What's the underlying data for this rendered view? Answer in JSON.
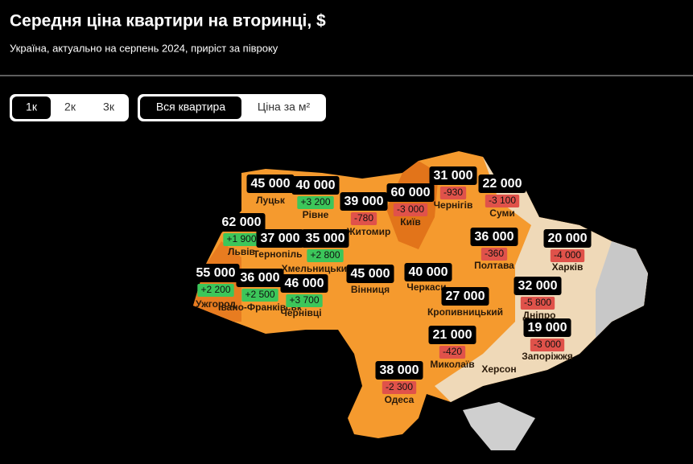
{
  "header": {
    "title": "Середня ціна квартири на вторинці, $",
    "subtitle": "Україна, актуально на серпень 2024, приріст за півроку"
  },
  "controls": {
    "rooms": [
      "1к",
      "2к",
      "3к"
    ],
    "modes": [
      "Вся квартира",
      "Ціна за м²"
    ]
  },
  "map": {
    "regions": [
      {
        "name": "Луцьк",
        "price": "45 000"
      },
      {
        "name": "Рівне",
        "price": "40 000",
        "change": "+3 200"
      },
      {
        "name": "Житомир",
        "price": "39 000",
        "change": "-780"
      },
      {
        "name": "Київ",
        "price": "60 000",
        "change": "-3 000"
      },
      {
        "name": "Чернігів",
        "price": "31 000",
        "change": "-930"
      },
      {
        "name": "Суми",
        "price": "22 000",
        "change": "-3 100"
      },
      {
        "name": "Львів",
        "price": "62 000",
        "change": "+1 900"
      },
      {
        "name": "Тернопіль",
        "price": "37 000"
      },
      {
        "name": "Хмельницький",
        "price": "35 000",
        "change": "+2 800"
      },
      {
        "name": "Вінниця",
        "price": "45 000"
      },
      {
        "name": "Черкаси",
        "price": "40 000"
      },
      {
        "name": "Полтава",
        "price": "36 000",
        "change": "-360"
      },
      {
        "name": "Харків",
        "price": "20 000",
        "change": "-4 000"
      },
      {
        "name": "Ужгород",
        "price": "55 000",
        "change": "+2 200"
      },
      {
        "name": "Івано-Франківськ",
        "price": "36 000",
        "change": "+2 500"
      },
      {
        "name": "Чернівці",
        "price": "46 000",
        "change": "+3 700"
      },
      {
        "name": "Кропивницький",
        "price": "27 000"
      },
      {
        "name": "Дніпро",
        "price": "32 000",
        "change": "-5 800"
      },
      {
        "name": "Запоріжжя",
        "price": "19 000",
        "change": "-3 000"
      },
      {
        "name": "Миколаїв",
        "price": "21 000",
        "change": "-420"
      },
      {
        "name": "Херсон"
      },
      {
        "name": "Одеса",
        "price": "38 000",
        "change": "-2 300"
      }
    ]
  }
}
